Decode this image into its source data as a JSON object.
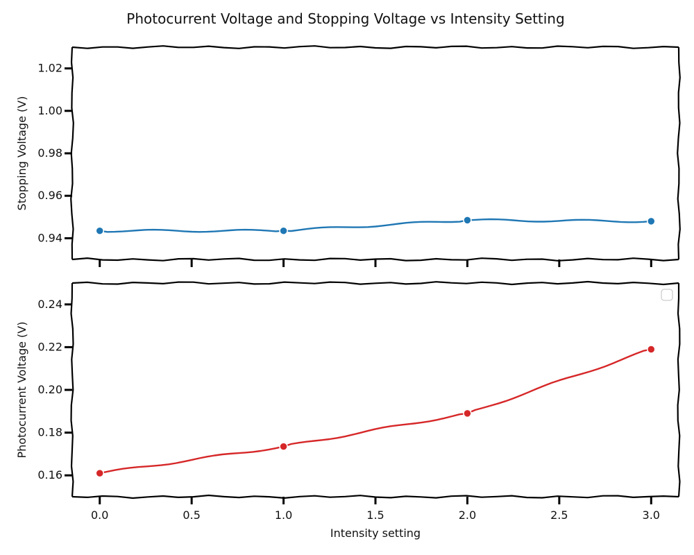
{
  "chart_data": {
    "type": "line",
    "title": "Photocurrent Voltage and Stopping Voltage vs Intensity Setting",
    "xlabel": "Intensity setting",
    "xlim": [
      -0.15,
      3.15
    ],
    "xticks": [
      "0.0",
      "0.5",
      "1.0",
      "1.5",
      "2.0",
      "2.5",
      "3.0"
    ],
    "x": [
      0,
      1,
      2,
      3
    ],
    "grid": false,
    "subplots": [
      {
        "ylabel": "Stopping Voltage (V)",
        "ylim": [
          0.93,
          1.03
        ],
        "yticks": [
          "0.94",
          "0.96",
          "0.98",
          "1.00",
          "1.02"
        ],
        "series": [
          {
            "values": [
              0.9435,
              0.9435,
              0.9485,
              0.948
            ],
            "color": "#1f77b4"
          }
        ]
      },
      {
        "ylabel": "Photocurrent Voltage (V)",
        "ylim": [
          0.15,
          0.25
        ],
        "yticks": [
          "0.16",
          "0.18",
          "0.20",
          "0.22",
          "0.24"
        ],
        "legend": "top-right (empty)",
        "series": [
          {
            "values": [
              0.161,
              0.1735,
              0.189,
              0.219
            ],
            "color": "#d62728"
          }
        ]
      }
    ]
  }
}
